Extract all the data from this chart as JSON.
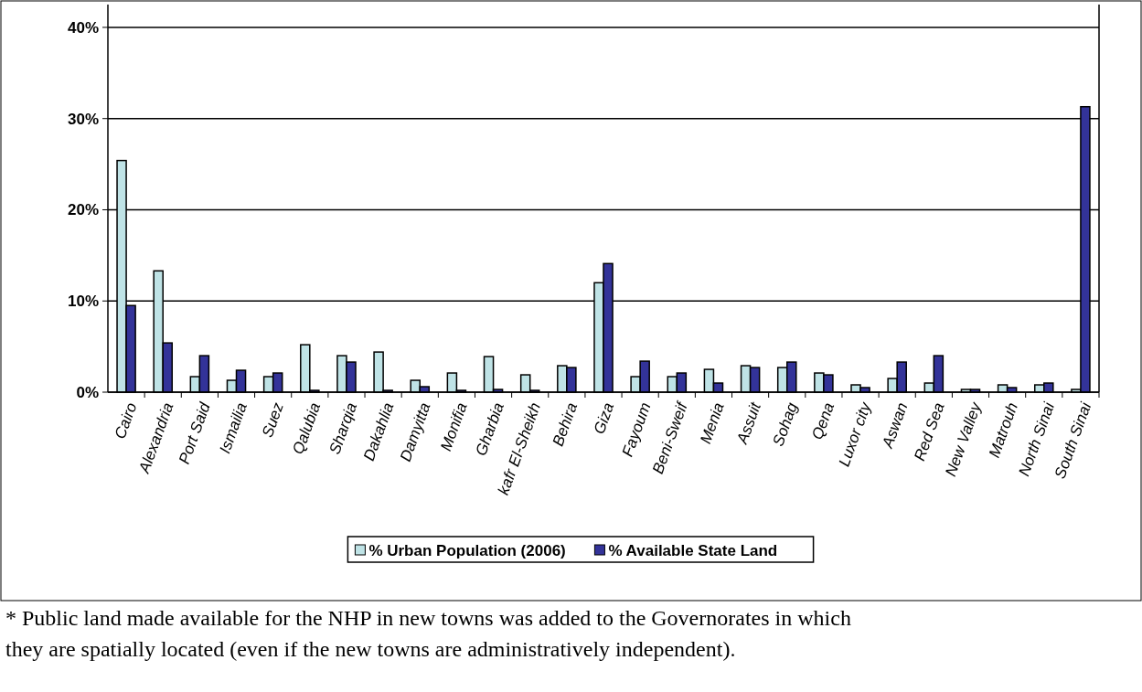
{
  "chart_data": {
    "type": "bar",
    "categories": [
      "Cairo",
      "Alexandria",
      "Port Said",
      "Ismailia",
      "Suez",
      "Qalubia",
      "Sharqia",
      "Dakahlia",
      "Damyitta",
      "Monifia",
      "Gharbia",
      "kafr El-Sheikh",
      "Behira",
      "Giza",
      "Fayoum",
      "Beni-Sweif",
      "Menia",
      "Assuit",
      "Sohag",
      "Qena",
      "Luxor city",
      "Aswan",
      "Red Sea",
      "New Valley",
      "Matrouh",
      "North Sinai",
      "South Sinai"
    ],
    "series": [
      {
        "name": "% Urban Population (2006)",
        "color": "#bfe3e6",
        "values": [
          25.4,
          13.3,
          1.7,
          1.3,
          1.7,
          5.2,
          4.0,
          4.4,
          1.3,
          2.1,
          3.9,
          1.9,
          2.9,
          12.0,
          1.7,
          1.7,
          2.5,
          2.9,
          2.7,
          2.1,
          0.8,
          1.5,
          1.0,
          0.3,
          0.8,
          0.8,
          0.3
        ]
      },
      {
        "name": "% Available State Land",
        "color": "#333399",
        "values": [
          9.5,
          5.4,
          4.0,
          2.4,
          2.1,
          0.2,
          3.3,
          0.2,
          0.6,
          0.2,
          0.3,
          0.2,
          2.7,
          14.1,
          3.4,
          2.1,
          1.0,
          2.7,
          3.3,
          1.9,
          0.5,
          3.3,
          4.0,
          0.3,
          0.5,
          1.0,
          31.3
        ]
      }
    ],
    "ylim": [
      0,
      42.5
    ],
    "yticks": [
      {
        "value": 0,
        "label": "0%"
      },
      {
        "value": 10,
        "label": "10%"
      },
      {
        "value": 20,
        "label": "20%"
      },
      {
        "value": 30,
        "label": "30%"
      },
      {
        "value": 40,
        "label": "40%"
      }
    ],
    "grid": "y",
    "legend": "bottom",
    "annotations": [
      "* Public land made available for the NHP in new towns was added to the Governorates in which they are spatially located (even if the new towns are administratively independent)."
    ]
  }
}
